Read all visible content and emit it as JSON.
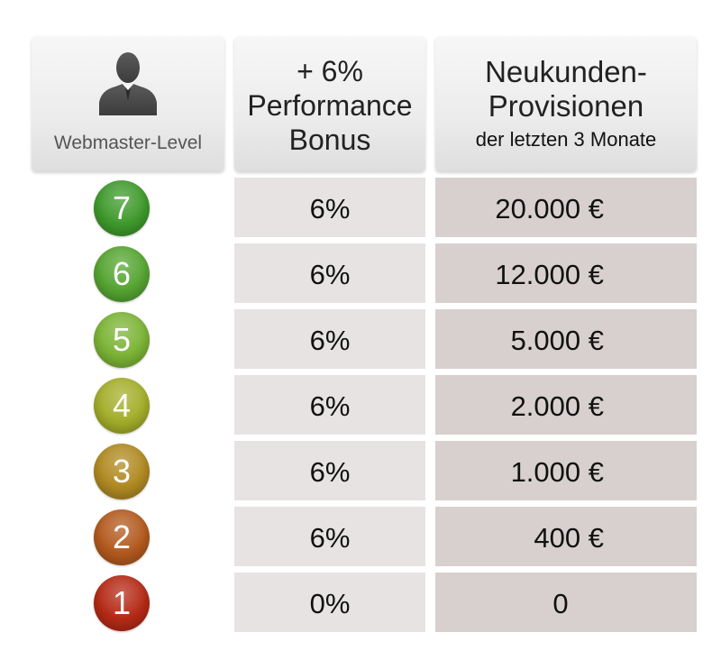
{
  "header": {
    "level_label": "Webmaster-Level",
    "level_icon": "person-silhouette-icon",
    "bonus_line1": "+ 6%",
    "bonus_line2": "Performance",
    "bonus_line3": "Bonus",
    "prov_line1": "Neukunden-",
    "prov_line2": "Provisionen",
    "prov_sub": "der letzten 3 Monate"
  },
  "rows": [
    {
      "level": "7",
      "bonus": "6%",
      "provision": "20.000 €",
      "color": "#3f9a2c"
    },
    {
      "level": "6",
      "bonus": "6%",
      "provision": "12.000 €",
      "color": "#56a532"
    },
    {
      "level": "5",
      "bonus": "6%",
      "provision": "5.000 €",
      "color": "#7cb436"
    },
    {
      "level": "4",
      "bonus": "6%",
      "provision": "2.000 €",
      "color": "#a4ae2a"
    },
    {
      "level": "3",
      "bonus": "6%",
      "provision": "1.000 €",
      "color": "#b08a22"
    },
    {
      "level": "2",
      "bonus": "6%",
      "provision": "400 €",
      "color": "#b35a1e"
    },
    {
      "level": "1",
      "bonus": "0%",
      "provision": "0",
      "color": "#b52a16"
    }
  ]
}
